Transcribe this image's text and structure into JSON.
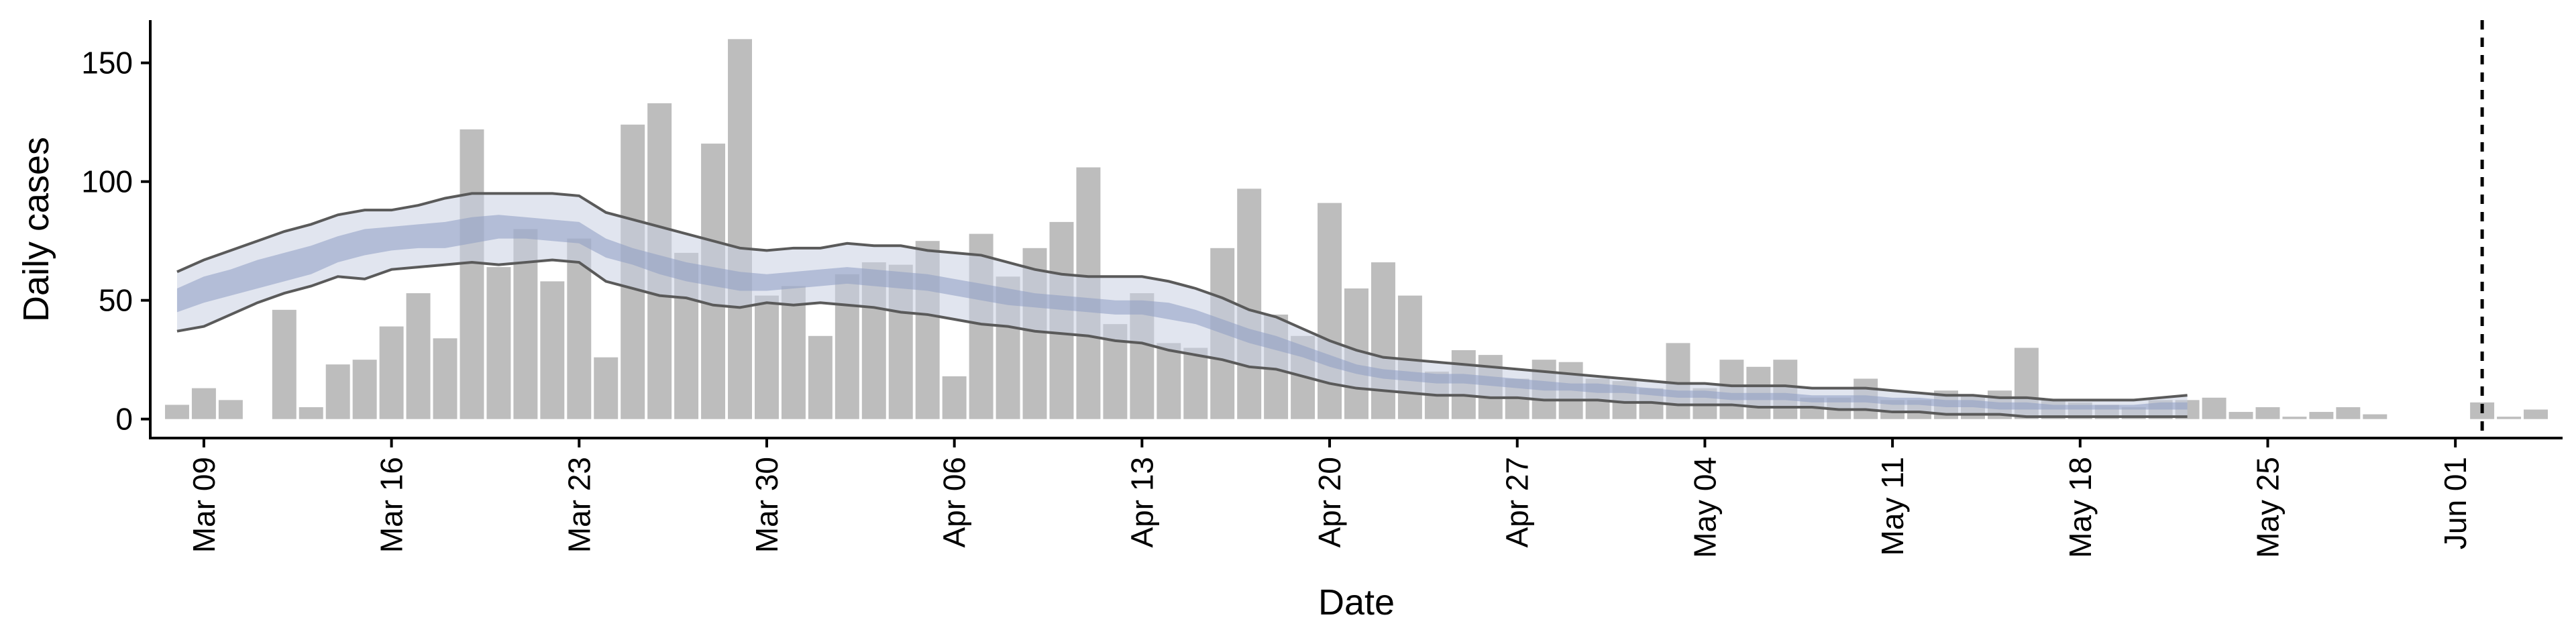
{
  "chart_data": {
    "type": "bar",
    "xlabel": "Date",
    "ylabel": "Daily cases",
    "ylim": [
      -8,
      168
    ],
    "x_start": "2020-03-07",
    "x_end": "2020-06-05",
    "y_ticks": [
      0,
      50,
      100,
      150
    ],
    "x_ticks": [
      {
        "date": "2020-03-09",
        "label": "Mar 09"
      },
      {
        "date": "2020-03-16",
        "label": "Mar 16"
      },
      {
        "date": "2020-03-23",
        "label": "Mar 23"
      },
      {
        "date": "2020-03-30",
        "label": "Mar 30"
      },
      {
        "date": "2020-04-06",
        "label": "Apr 06"
      },
      {
        "date": "2020-04-13",
        "label": "Apr 13"
      },
      {
        "date": "2020-04-20",
        "label": "Apr 20"
      },
      {
        "date": "2020-04-27",
        "label": "Apr 27"
      },
      {
        "date": "2020-05-04",
        "label": "May 04"
      },
      {
        "date": "2020-05-11",
        "label": "May 11"
      },
      {
        "date": "2020-05-18",
        "label": "May 18"
      },
      {
        "date": "2020-05-25",
        "label": "May 25"
      },
      {
        "date": "2020-06-01",
        "label": "Jun 01"
      }
    ],
    "cases_first_date": "2020-03-08",
    "daily_cases": [
      6,
      13,
      8,
      0,
      46,
      5,
      23,
      25,
      39,
      53,
      34,
      122,
      64,
      80,
      58,
      76,
      26,
      124,
      133,
      70,
      116,
      160,
      52,
      56,
      35,
      61,
      66,
      65,
      75,
      18,
      78,
      60,
      72,
      83,
      106,
      40,
      53,
      32,
      30,
      72,
      97,
      44,
      35,
      91,
      55,
      66,
      52,
      20,
      29,
      27,
      17,
      25,
      24,
      17,
      16,
      13,
      32,
      13,
      25,
      22,
      25,
      9,
      9,
      17,
      8,
      8,
      12,
      10,
      12,
      30,
      8,
      7,
      6,
      5,
      8,
      8,
      9,
      3,
      5,
      1,
      3,
      5,
      2,
      0,
      0,
      0,
      7,
      1,
      4
    ],
    "estimate_first_date": "2020-03-08",
    "estimate": {
      "outer_upper": [
        62,
        67,
        71,
        75,
        79,
        82,
        86,
        88,
        88,
        90,
        93,
        95,
        95,
        95,
        95,
        94,
        87,
        84,
        81,
        78,
        75,
        72,
        71,
        72,
        72,
        74,
        73,
        73,
        71,
        70,
        69,
        66,
        63,
        61,
        60,
        60,
        60,
        58,
        55,
        51,
        46,
        43,
        38,
        33,
        29,
        26,
        25,
        24,
        23,
        22,
        21,
        20,
        19,
        18,
        17,
        16,
        15,
        15,
        14,
        14,
        14,
        13,
        13,
        13,
        12,
        11,
        10,
        10,
        9,
        9,
        8,
        8,
        8,
        8,
        9,
        10
      ],
      "inner_upper": [
        55,
        60,
        63,
        67,
        70,
        73,
        77,
        80,
        81,
        82,
        83,
        85,
        86,
        85,
        84,
        83,
        76,
        72,
        69,
        66,
        64,
        62,
        61,
        62,
        63,
        64,
        63,
        62,
        61,
        59,
        57,
        55,
        53,
        52,
        51,
        50,
        50,
        49,
        46,
        42,
        38,
        35,
        31,
        27,
        23,
        21,
        20,
        19,
        19,
        18,
        17,
        16,
        15,
        15,
        14,
        13,
        12,
        12,
        11,
        11,
        11,
        10,
        10,
        10,
        9,
        9,
        8,
        8,
        7,
        7,
        6,
        6,
        6,
        6,
        7,
        7
      ],
      "inner_lower": [
        45,
        49,
        52,
        55,
        58,
        61,
        66,
        69,
        71,
        72,
        72,
        74,
        76,
        76,
        75,
        74,
        68,
        65,
        61,
        58,
        56,
        54,
        54,
        55,
        56,
        57,
        56,
        55,
        54,
        52,
        50,
        48,
        47,
        46,
        45,
        44,
        44,
        42,
        40,
        36,
        32,
        29,
        26,
        22,
        19,
        17,
        16,
        15,
        15,
        14,
        13,
        12,
        12,
        11,
        11,
        10,
        9,
        9,
        8,
        8,
        8,
        7,
        7,
        7,
        6,
        6,
        5,
        5,
        4,
        4,
        4,
        4,
        4,
        4,
        4,
        4
      ],
      "outer_lower": [
        37,
        39,
        44,
        49,
        53,
        56,
        60,
        59,
        63,
        64,
        65,
        66,
        65,
        66,
        67,
        66,
        58,
        55,
        52,
        51,
        48,
        47,
        49,
        48,
        49,
        48,
        47,
        45,
        44,
        42,
        40,
        39,
        37,
        36,
        35,
        33,
        32,
        29,
        27,
        25,
        22,
        21,
        18,
        15,
        13,
        12,
        11,
        10,
        10,
        9,
        9,
        8,
        8,
        8,
        7,
        7,
        6,
        6,
        6,
        5,
        5,
        5,
        4,
        4,
        3,
        3,
        2,
        2,
        2,
        1,
        1,
        1,
        1,
        1,
        1,
        1
      ]
    },
    "marker_date": "2020-06-02",
    "grid": false,
    "legend": "none"
  }
}
